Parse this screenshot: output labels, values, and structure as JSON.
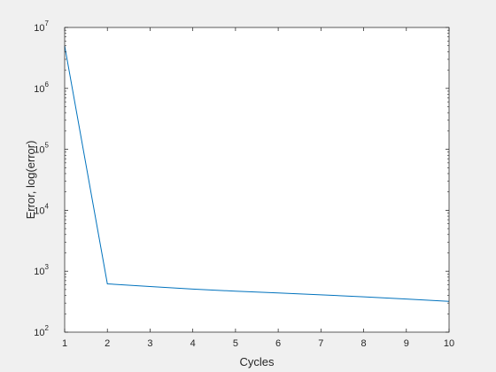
{
  "chart_data": {
    "type": "line",
    "xlabel": "Cycles",
    "ylabel": "Error, log(error)",
    "xlim": [
      1,
      10
    ],
    "ylim": [
      100,
      10000000
    ],
    "yscale": "log",
    "xticks": [
      1,
      2,
      3,
      4,
      5,
      6,
      7,
      8,
      9,
      10
    ],
    "yticks": [
      {
        "base": "10",
        "exp": "2",
        "value": 100
      },
      {
        "base": "10",
        "exp": "3",
        "value": 1000
      },
      {
        "base": "10",
        "exp": "4",
        "value": 10000
      },
      {
        "base": "10",
        "exp": "5",
        "value": 100000
      },
      {
        "base": "10",
        "exp": "6",
        "value": 1000000
      },
      {
        "base": "10",
        "exp": "7",
        "value": 10000000
      }
    ],
    "grid": false,
    "series": [
      {
        "color": "#0072bd",
        "x": [
          1,
          2,
          3,
          4,
          5,
          6,
          7,
          8,
          9,
          10
        ],
        "y": [
          5000000,
          620,
          560,
          510,
          470,
          440,
          410,
          380,
          350,
          320
        ]
      }
    ]
  }
}
